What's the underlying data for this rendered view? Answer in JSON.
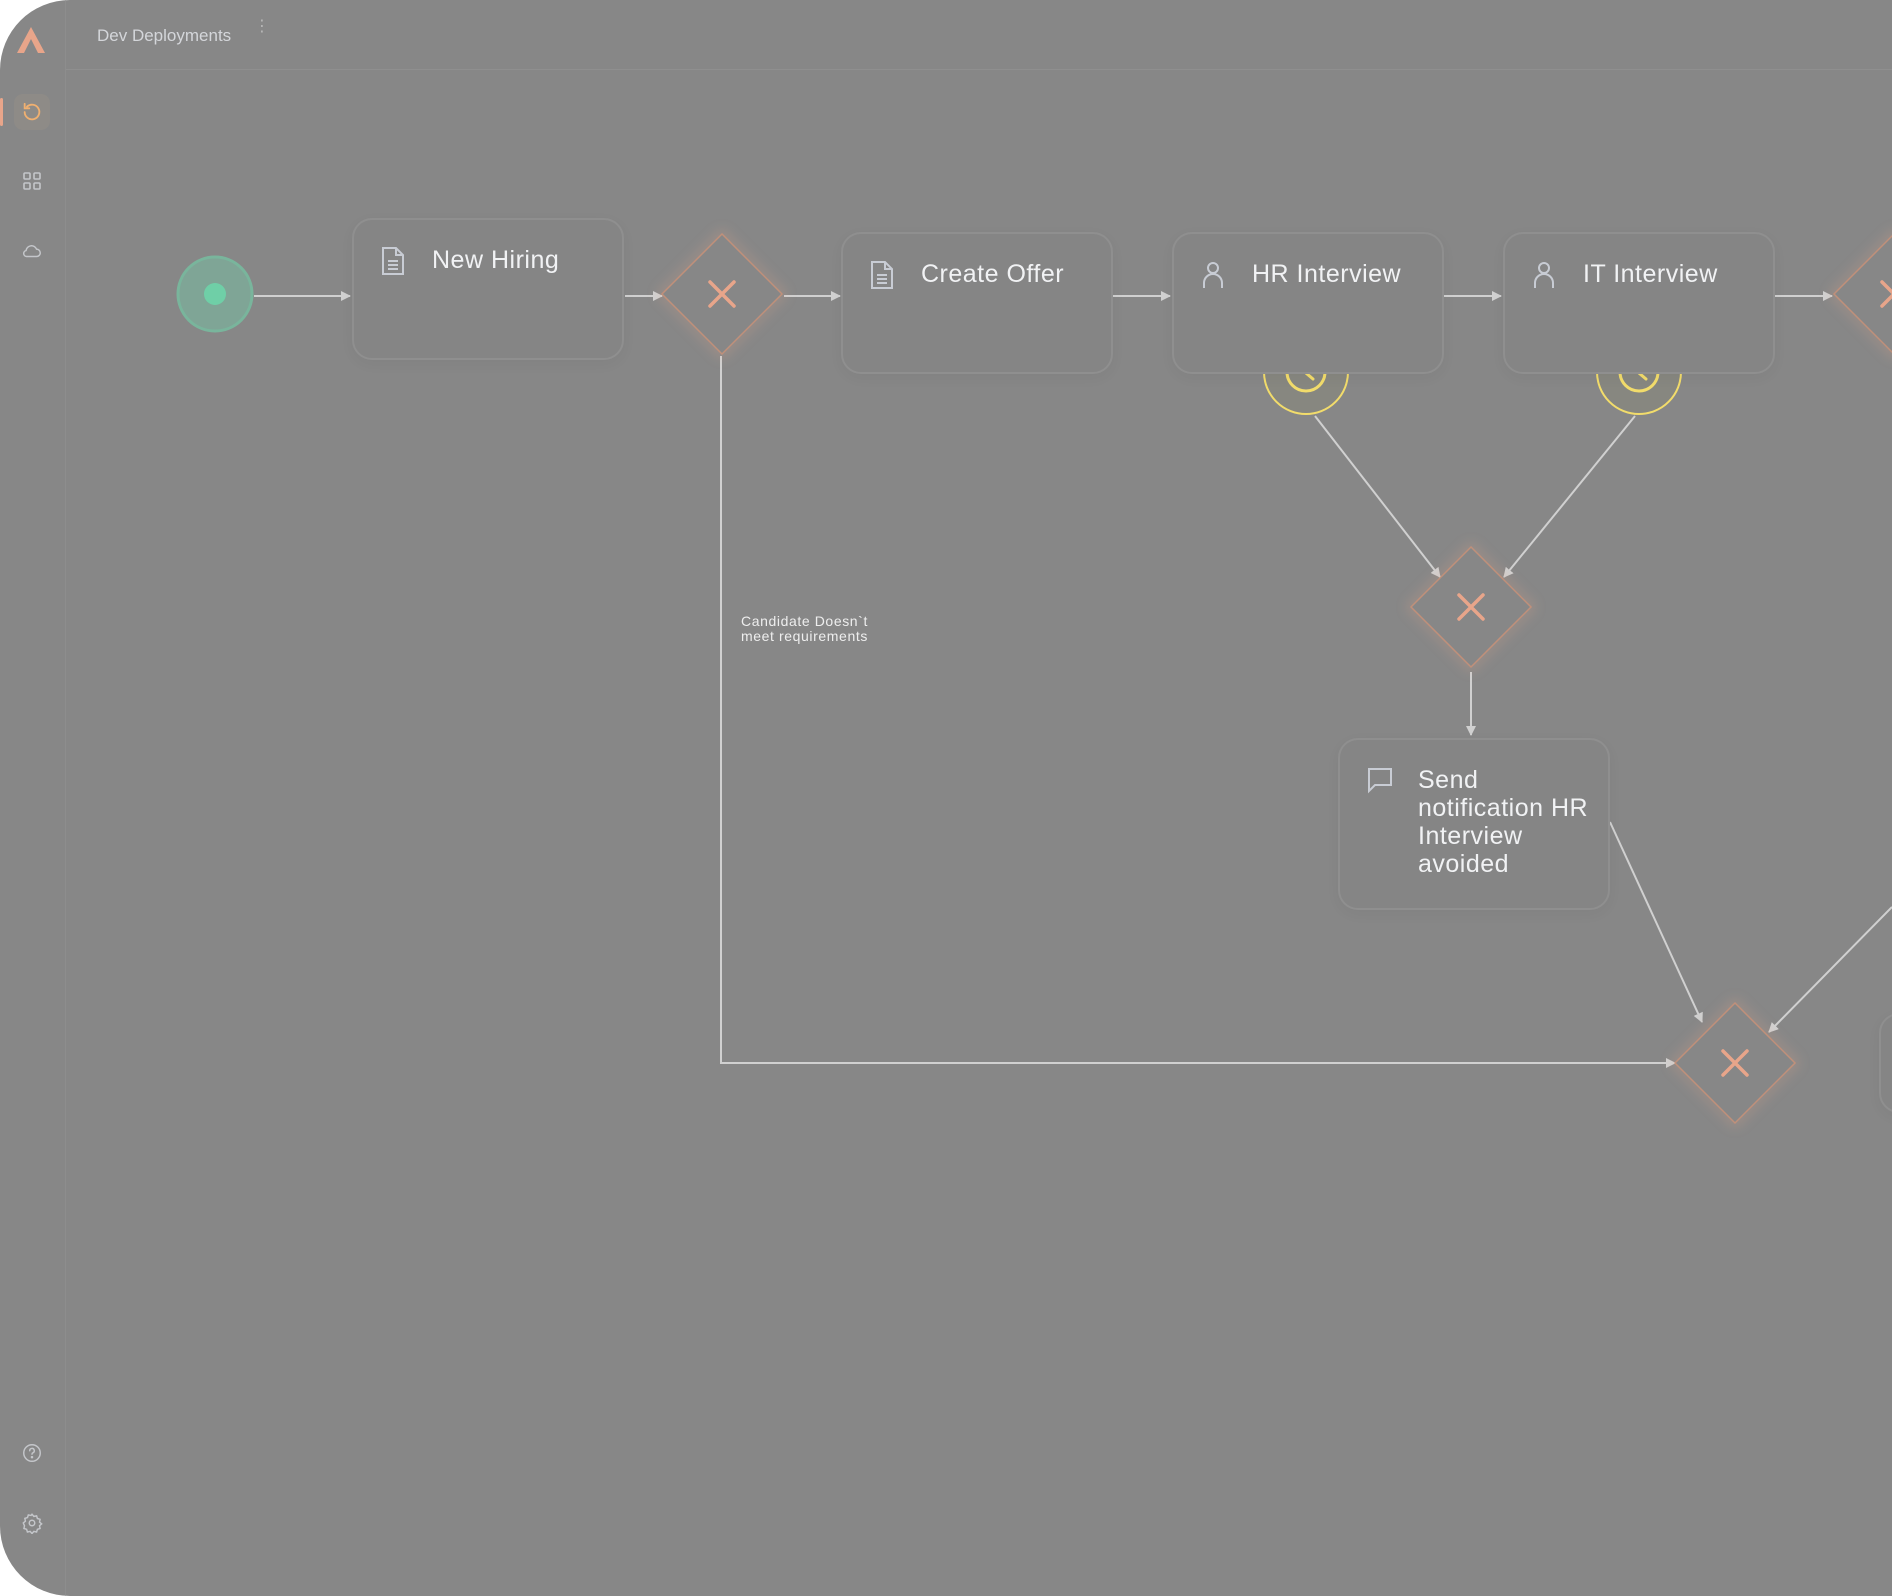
{
  "header": {
    "title": "Dev Deployments",
    "menu_icon": "kebab-icon"
  },
  "sidebar": {
    "logo": "A",
    "items": [
      {
        "name": "history",
        "icon": "refresh-icon",
        "active": true
      },
      {
        "name": "apps",
        "icon": "grid-icon",
        "active": false
      },
      {
        "name": "cloud",
        "icon": "cloud-icon",
        "active": false
      }
    ],
    "bottom_items": [
      {
        "name": "help",
        "icon": "help-icon"
      },
      {
        "name": "settings",
        "icon": "gear-icon"
      }
    ]
  },
  "diagram": {
    "nodes": [
      {
        "id": "new-hiring",
        "label": "New Hiring",
        "icon": "document-icon"
      },
      {
        "id": "create-offer",
        "label": "Create Offer",
        "icon": "document-icon"
      },
      {
        "id": "hr-interview",
        "label": "HR Interview",
        "icon": "user-icon",
        "timer": true
      },
      {
        "id": "it-interview",
        "label": "IT Interview",
        "icon": "user-icon",
        "timer": true
      },
      {
        "id": "send-notification",
        "label": "Send notification HR Interview avoided",
        "icon": "message-icon"
      }
    ],
    "edge_labels": {
      "rejected": "Candidate Doesn`t meet requirements"
    },
    "colors": {
      "start": "#6fcfa7",
      "gateway": "#e8a58a",
      "timer": "#f2dc6b",
      "edge": "#d0d0d0",
      "background": "#878787"
    }
  }
}
